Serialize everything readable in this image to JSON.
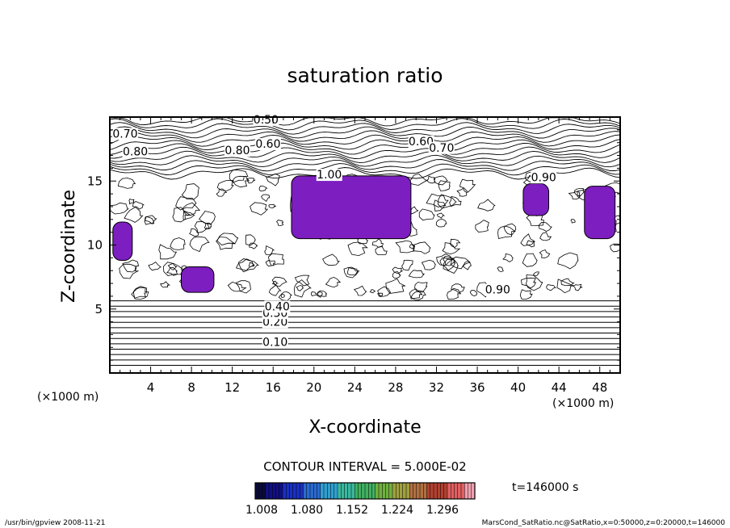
{
  "chart_data": {
    "type": "contour",
    "title": "saturation ratio",
    "xlabel": "X-coordinate",
    "ylabel": "Z-coordinate",
    "x_unit": "(×1000 m)",
    "x_unit_right": "(×1000 m)",
    "xlim": [
      0,
      50
    ],
    "ylim": [
      0,
      20
    ],
    "x_ticks": [
      4,
      8,
      12,
      16,
      20,
      24,
      28,
      32,
      36,
      40,
      44,
      48
    ],
    "y_ticks": [
      5,
      10,
      15
    ],
    "contour_interval_text": "CONTOUR INTERVAL = 5.000E-02",
    "contour_labels": [
      {
        "x": 16.2,
        "y": 2.1,
        "text": "0.10"
      },
      {
        "x": 16.2,
        "y": 3.7,
        "text": "0.20"
      },
      {
        "x": 16.2,
        "y": 4.4,
        "text": "0.30"
      },
      {
        "x": 16.4,
        "y": 4.9,
        "text": "0.40"
      },
      {
        "x": 15.3,
        "y": 19.5,
        "text": "0.50"
      },
      {
        "x": 1.5,
        "y": 18.4,
        "text": "0.70"
      },
      {
        "x": 2.5,
        "y": 17.0,
        "text": "0.80"
      },
      {
        "x": 15.5,
        "y": 17.6,
        "text": "0.60"
      },
      {
        "x": 12.5,
        "y": 17.1,
        "text": "0.80"
      },
      {
        "x": 30.5,
        "y": 17.8,
        "text": "0.60"
      },
      {
        "x": 32.5,
        "y": 17.3,
        "text": "0.70"
      },
      {
        "x": 21.5,
        "y": 15.2,
        "text": "1.00"
      },
      {
        "x": 42.5,
        "y": 15.0,
        "text": "0.90"
      },
      {
        "x": 38.0,
        "y": 6.2,
        "text": "0.90"
      }
    ],
    "shaded_regions": [
      {
        "name": "main",
        "x": [
          17.8,
          29.5
        ],
        "y": [
          10.5,
          15.4
        ]
      },
      {
        "x": [
          0.3,
          2.2
        ],
        "y": [
          8.8,
          11.8
        ]
      },
      {
        "x": [
          7.0,
          10.2
        ],
        "y": [
          6.3,
          8.3
        ]
      },
      {
        "x": [
          40.5,
          43.0
        ],
        "y": [
          12.3,
          14.8
        ]
      },
      {
        "x": [
          46.5,
          49.5
        ],
        "y": [
          10.5,
          14.6
        ]
      }
    ],
    "colorbar": {
      "colors": [
        "#0a0a3a",
        "#101080",
        "#1a30c0",
        "#2a6ad0",
        "#30a0d0",
        "#3ab8a0",
        "#40b060",
        "#70b040",
        "#a0a040",
        "#b07040",
        "#b04030",
        "#e06060",
        "#f0a0b0"
      ],
      "tick_labels": [
        "1.008",
        "1.080",
        "1.152",
        "1.224",
        "1.296"
      ]
    },
    "time_label": "t=146000 s",
    "footer_left": "/usr/bin/gpview   2008-11-21",
    "footer_right": "MarsCond_SatRatio.nc@SatRatio,x=0:50000,z=0:20000,t=146000"
  }
}
